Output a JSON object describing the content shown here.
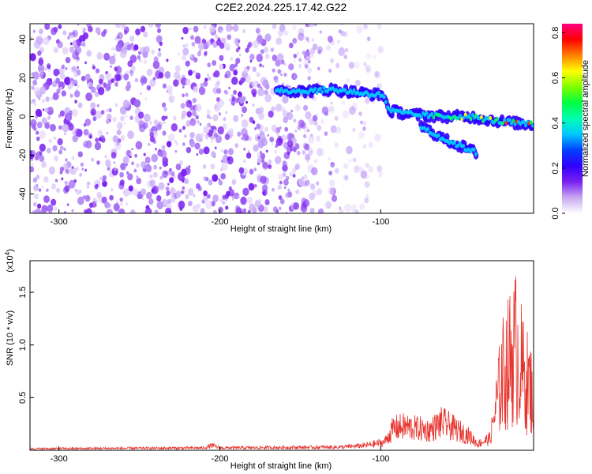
{
  "title": "C2E2.2024.225.17.42.G22",
  "chart_data": [
    {
      "type": "heatmap",
      "xlabel": "Height of straight line (km)",
      "ylabel": "Frequency (Hz)",
      "xlim": [
        -318,
        -5
      ],
      "ylim": [
        -50,
        48
      ],
      "xticks": [
        -300,
        -200,
        -100
      ],
      "yticks": [
        -40,
        -20,
        0,
        20,
        40
      ],
      "colorbar": {
        "label": "Normalized spectral amplitude",
        "range": [
          0,
          0.84
        ],
        "ticks": [
          "0.0",
          "0.2",
          "0.4",
          "0.6",
          "0.8"
        ],
        "colors": [
          "#ffffff",
          "#c8a8f0",
          "#7a1ff0",
          "#3000ff",
          "#0040ff",
          "#00c8ff",
          "#00ffb0",
          "#00ff40",
          "#80ff00",
          "#ffff00",
          "#ff8000",
          "#ff0000",
          "#ff0080"
        ]
      },
      "noise_region": {
        "x_from": -318,
        "x_to": -140,
        "y_from": -50,
        "y_to": 48
      },
      "signal_track": [
        {
          "x": -165,
          "y": 14
        },
        {
          "x": -150,
          "y": 13
        },
        {
          "x": -130,
          "y": 14
        },
        {
          "x": -110,
          "y": 12
        },
        {
          "x": -98,
          "y": 11
        },
        {
          "x": -95,
          "y": 3
        },
        {
          "x": -80,
          "y": 1
        },
        {
          "x": -60,
          "y": 0
        },
        {
          "x": -45,
          "y": 0
        },
        {
          "x": -30,
          "y": -2
        },
        {
          "x": -20,
          "y": -3
        },
        {
          "x": -10,
          "y": -4
        },
        {
          "x": -5,
          "y": -4
        }
      ],
      "signal_branch": [
        {
          "x": -75,
          "y": -5
        },
        {
          "x": -60,
          "y": -12
        },
        {
          "x": -45,
          "y": -17
        },
        {
          "x": -40,
          "y": -19
        }
      ]
    },
    {
      "type": "line",
      "xlabel": "Height of straight line (km)",
      "ylabel": "SNR (10 * v/v)",
      "exponent_label": "(x10",
      "exponent_power": "4",
      "exponent_close": ")",
      "xlim": [
        -318,
        -5
      ],
      "ylim": [
        0,
        1.8
      ],
      "xticks": [
        -300,
        -200,
        -100
      ],
      "yticks": [
        "0.5",
        "1.0",
        "1.5"
      ],
      "color": "#e8342e",
      "envelope": [
        {
          "x": -318,
          "y": 0.02
        },
        {
          "x": -210,
          "y": 0.03
        },
        {
          "x": -205,
          "y": 0.06
        },
        {
          "x": -200,
          "y": 0.03
        },
        {
          "x": -125,
          "y": 0.04
        },
        {
          "x": -110,
          "y": 0.06
        },
        {
          "x": -98,
          "y": 0.1
        },
        {
          "x": -92,
          "y": 0.28
        },
        {
          "x": -85,
          "y": 0.3
        },
        {
          "x": -70,
          "y": 0.25
        },
        {
          "x": -62,
          "y": 0.35
        },
        {
          "x": -55,
          "y": 0.28
        },
        {
          "x": -45,
          "y": 0.18
        },
        {
          "x": -40,
          "y": 0.08
        },
        {
          "x": -32,
          "y": 0.15
        },
        {
          "x": -25,
          "y": 1.0
        },
        {
          "x": -16,
          "y": 1.4
        },
        {
          "x": -12,
          "y": 1.05
        },
        {
          "x": -6,
          "y": 0.8
        },
        {
          "x": -5,
          "y": 0.5
        }
      ]
    }
  ]
}
